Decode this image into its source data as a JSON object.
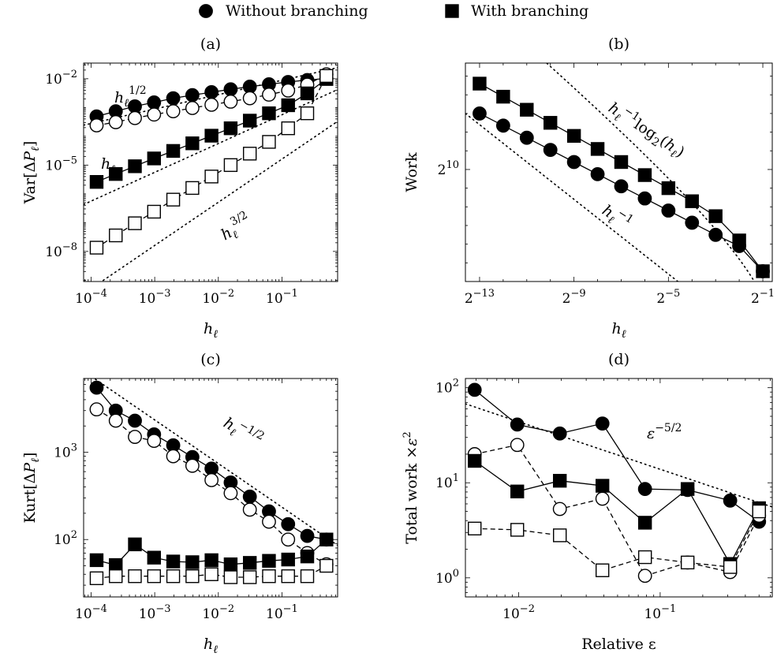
{
  "legend": {
    "items": [
      {
        "label": "Without branching",
        "marker": "circle",
        "fill": "#000000"
      },
      {
        "label": "With branching",
        "marker": "square",
        "fill": "#000000"
      }
    ]
  },
  "chart_data": [
    {
      "id": "a",
      "type": "line",
      "title": "(a)",
      "xlabel": "h_ℓ",
      "ylabel": "Var[ΔP_ℓ]",
      "xscale": "log",
      "yscale": "log",
      "xlim": [
        7.62939453125e-05,
        0.75
      ],
      "ylim": [
        9e-10,
        0.035
      ],
      "xticks": [
        {
          "value": 0.0001,
          "base": "10",
          "exp": "−4"
        },
        {
          "value": 0.001,
          "base": "10",
          "exp": "−3"
        },
        {
          "value": 0.01,
          "base": "10",
          "exp": "−2"
        },
        {
          "value": 0.1,
          "base": "10",
          "exp": "−1"
        }
      ],
      "yticks": [
        {
          "value": 1e-08,
          "base": "10",
          "exp": "−8"
        },
        {
          "value": 1e-05,
          "base": "10",
          "exp": "−5"
        },
        {
          "value": 0.01,
          "base": "10",
          "exp": "−2"
        }
      ],
      "x": [
        0.0001220703125,
        0.000244140625,
        0.00048828125,
        0.0009765625,
        0.001953125,
        0.00390625,
        0.0078125,
        0.015625,
        0.03125,
        0.0625,
        0.125,
        0.25,
        0.5
      ],
      "series": [
        {
          "name": "Without branching",
          "marker": "circle",
          "filled": true,
          "dash": false,
          "values": [
            0.00049,
            0.00074,
            0.0011,
            0.0015,
            0.0021,
            0.0027,
            0.0034,
            0.0043,
            0.0053,
            0.0064,
            0.0077,
            0.009,
            0.0102
          ]
        },
        {
          "name": "Without branching",
          "marker": "circle",
          "filled": false,
          "dash": true,
          "values": [
            0.00024,
            0.00031,
            0.00043,
            0.00057,
            0.00074,
            0.00096,
            0.00125,
            0.0016,
            0.0021,
            0.0028,
            0.0039,
            0.0062,
            0.0142
          ]
        },
        {
          "name": "With branching",
          "marker": "square",
          "filled": true,
          "dash": false,
          "values": [
            2.6e-06,
            4.9e-06,
            9.1e-06,
            1.7e-05,
            3.1e-05,
            5.7e-05,
            0.000105,
            0.00019,
            0.00035,
            0.00063,
            0.0012,
            0.0031,
            0.0098
          ]
        },
        {
          "name": "With branching",
          "marker": "square",
          "filled": false,
          "dash": true,
          "values": [
            1.35e-08,
            3.6e-08,
            9.5e-08,
            2.4e-07,
            6.3e-07,
            1.6e-06,
            4e-06,
            1e-05,
            2.5e-05,
            6.4e-05,
            0.00019,
            0.00063,
            0.0125
          ]
        }
      ],
      "reference_lines": [
        {
          "label_base": "h",
          "label_sup": "1/2",
          "anchor_x": 0.25,
          "anchor_y": 0.014,
          "slope": 0.5
        },
        {
          "label_base": "h",
          "label_sup": "",
          "anchor_x": 0.25,
          "anchor_y": 0.0014,
          "slope": 1
        },
        {
          "label_base": "h",
          "label_sup": "3/2",
          "anchor_x": 0.5,
          "anchor_y": 0.00018,
          "slope": 1.5
        }
      ]
    },
    {
      "id": "b",
      "type": "line",
      "title": "(b)",
      "xlabel": "h_ℓ",
      "ylabel": "Work",
      "xscale": "log2",
      "yscale": "log2",
      "xlim": [
        -13.6,
        -0.6
      ],
      "ylim": [
        4.0,
        15.7
      ],
      "xticks": [
        {
          "value": -13,
          "base": "2",
          "exp": "−13"
        },
        {
          "value": -9,
          "base": "2",
          "exp": "−9"
        },
        {
          "value": -5,
          "base": "2",
          "exp": "−5"
        },
        {
          "value": -1,
          "base": "2",
          "exp": "−1"
        }
      ],
      "yticks": [
        {
          "value": 10,
          "base": "2",
          "exp": "10"
        }
      ],
      "x": [
        -13,
        -12,
        -11,
        -10,
        -9,
        -8,
        -7,
        -6,
        -5,
        -4,
        -3,
        -2,
        -1
      ],
      "series": [
        {
          "name": "Without branching",
          "marker": "circle",
          "filled": true,
          "dash": false,
          "values": [
            13.0,
            12.35,
            11.7,
            11.05,
            10.4,
            9.75,
            9.1,
            8.45,
            7.8,
            7.15,
            6.5,
            5.9,
            4.55
          ]
        },
        {
          "name": "With branching",
          "marker": "square",
          "filled": true,
          "dash": false,
          "values": [
            14.6,
            13.9,
            13.2,
            12.5,
            11.8,
            11.1,
            10.4,
            9.7,
            9.0,
            8.3,
            7.5,
            6.2,
            4.55
          ]
        }
      ],
      "reference_lines": [
        {
          "label_base": "h",
          "label_sup": "−1",
          "label_extra": "log₂(h",
          "kind": "hlog",
          "offset": 13.2
        },
        {
          "label_base": "h",
          "label_sup": "−1",
          "kind": "linear",
          "anchor_x": -13,
          "anchor_y": 12.4
        }
      ]
    },
    {
      "id": "c",
      "type": "line",
      "title": "(c)",
      "xlabel": "h_ℓ",
      "ylabel": "Kurt[ΔP_ℓ]",
      "xscale": "log",
      "yscale": "log",
      "xlim": [
        7.62939453125e-05,
        0.75
      ],
      "ylim": [
        22,
        7000
      ],
      "xticks": [
        {
          "value": 0.0001,
          "base": "10",
          "exp": "−4"
        },
        {
          "value": 0.001,
          "base": "10",
          "exp": "−3"
        },
        {
          "value": 0.01,
          "base": "10",
          "exp": "−2"
        },
        {
          "value": 0.1,
          "base": "10",
          "exp": "−1"
        }
      ],
      "yticks": [
        {
          "value": 100,
          "base": "10",
          "exp": "2"
        },
        {
          "value": 1000,
          "base": "10",
          "exp": "3"
        }
      ],
      "x": [
        0.0001220703125,
        0.000244140625,
        0.00048828125,
        0.0009765625,
        0.001953125,
        0.00390625,
        0.0078125,
        0.015625,
        0.03125,
        0.0625,
        0.125,
        0.25,
        0.5
      ],
      "series": [
        {
          "name": "Without branching",
          "marker": "circle",
          "filled": true,
          "dash": false,
          "values": [
            5500,
            3000,
            2300,
            1600,
            1200,
            880,
            650,
            450,
            310,
            210,
            150,
            110,
            100
          ]
        },
        {
          "name": "Without branching",
          "marker": "circle",
          "filled": false,
          "dash": true,
          "values": [
            3100,
            2300,
            1500,
            1350,
            900,
            700,
            480,
            340,
            220,
            160,
            100,
            70,
            52
          ]
        },
        {
          "name": "With branching",
          "marker": "square",
          "filled": true,
          "dash": false,
          "values": [
            58,
            51,
            88,
            62,
            56,
            55,
            58,
            52,
            54,
            57,
            59,
            64,
            100
          ]
        },
        {
          "name": "With branching",
          "marker": "square",
          "filled": false,
          "dash": true,
          "values": [
            36,
            38,
            38,
            38,
            38,
            38,
            40,
            37,
            37,
            38,
            38,
            38,
            50
          ]
        }
      ],
      "reference_lines": [
        {
          "label_base": "h",
          "label_sup": "−1/2",
          "anchor_x": 0.5,
          "anchor_y": 105,
          "slope": -0.5
        }
      ]
    },
    {
      "id": "d",
      "type": "line",
      "title": "(d)",
      "xlabel": "Relative ε",
      "ylabel": "Total work ×ε²",
      "xscale": "log",
      "yscale": "log",
      "xlim": [
        0.0042,
        0.62
      ],
      "ylim": [
        0.63,
        125
      ],
      "xticks": [
        {
          "value": 0.01,
          "base": "10",
          "exp": "−2"
        },
        {
          "value": 0.1,
          "base": "10",
          "exp": "−1"
        }
      ],
      "yticks": [
        {
          "value": 1,
          "base": "10",
          "exp": "0"
        },
        {
          "value": 10,
          "base": "10",
          "exp": "1"
        },
        {
          "value": 100,
          "base": "10",
          "exp": "2"
        }
      ],
      "x": [
        0.0048828125,
        0.009765625,
        0.01953125,
        0.0390625,
        0.078125,
        0.15625,
        0.3125,
        0.5
      ],
      "series": [
        {
          "name": "Without branching",
          "marker": "circle",
          "filled": true,
          "dash": false,
          "values": [
            95,
            41,
            33,
            42,
            8.6,
            8.4,
            6.5,
            3.9
          ]
        },
        {
          "name": "Without branching",
          "marker": "circle",
          "filled": false,
          "dash": true,
          "values": [
            20,
            25,
            5.3,
            6.8,
            1.05,
            1.45,
            1.15,
            4.5
          ]
        },
        {
          "name": "With branching",
          "marker": "square",
          "filled": true,
          "dash": false,
          "values": [
            17,
            8.1,
            10.5,
            9.3,
            3.8,
            8.6,
            1.4,
            5.4
          ]
        },
        {
          "name": "With branching",
          "marker": "square",
          "filled": false,
          "dash": true,
          "values": [
            3.3,
            3.2,
            2.8,
            1.2,
            1.65,
            1.45,
            1.3,
            5.0
          ]
        }
      ],
      "reference_lines": [
        {
          "label_base": "ε",
          "label_sup": "−5/2",
          "anchor_x": 0.5,
          "anchor_y": 6.2,
          "slope": -0.5
        }
      ]
    }
  ]
}
